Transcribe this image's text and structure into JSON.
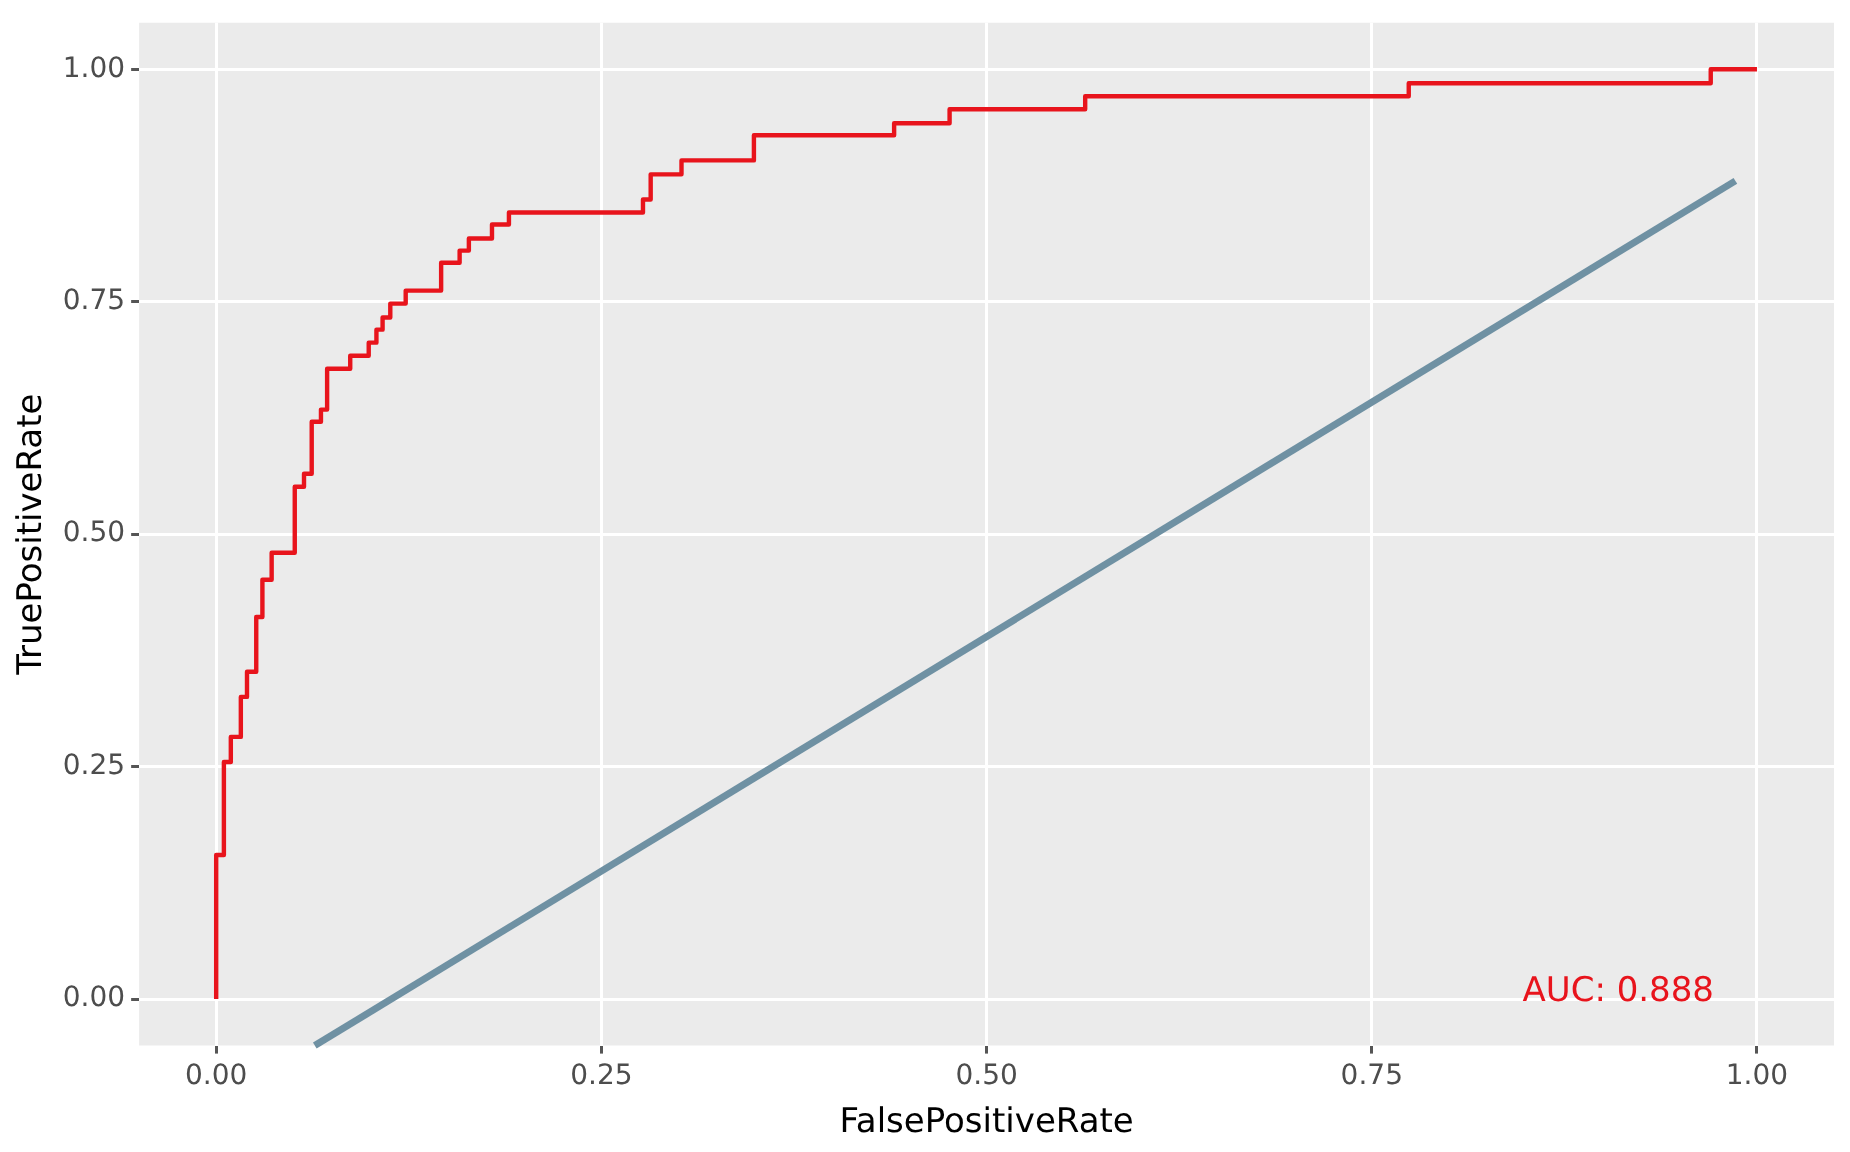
{
  "chart_data": {
    "type": "line",
    "xlabel": "FalsePositiveRate",
    "ylabel": "TruePositiveRate",
    "xlim": [
      -0.05,
      1.05
    ],
    "ylim": [
      -0.05,
      1.05
    ],
    "xticks": [
      {
        "value": 0,
        "label": "0.00"
      },
      {
        "value": 0.25,
        "label": "0.25"
      },
      {
        "value": 0.5,
        "label": "0.50"
      },
      {
        "value": 0.75,
        "label": "0.75"
      },
      {
        "value": 1,
        "label": "1.00"
      }
    ],
    "yticks": [
      {
        "value": 0,
        "label": "0.00"
      },
      {
        "value": 0.25,
        "label": "0.25"
      },
      {
        "value": 0.5,
        "label": "0.50"
      },
      {
        "value": 0.75,
        "label": "0.75"
      },
      {
        "value": 1,
        "label": "1.00"
      }
    ],
    "grid": true,
    "legend": false,
    "marker": "none",
    "line_style": "solid",
    "series": [
      {
        "type": "step",
        "color": "#e8141c",
        "x": [
          0,
          0,
          0.005,
          0.0095,
          0.016,
          0.02,
          0.026,
          0.03,
          0.036,
          0.051,
          0.057,
          0.062,
          0.068,
          0.072,
          0.087,
          0.099,
          0.104,
          0.108,
          0.113,
          0.123,
          0.146,
          0.158,
          0.164,
          0.179,
          0.19,
          0.277,
          0.282,
          0.302,
          0.349,
          0.44,
          0.476,
          0.564,
          0.774,
          0.97,
          1.0
        ],
        "values": [
          0,
          0.155,
          0.255,
          0.282,
          0.325,
          0.352,
          0.411,
          0.451,
          0.48,
          0.551,
          0.565,
          0.621,
          0.634,
          0.678,
          0.692,
          0.706,
          0.72,
          0.733,
          0.748,
          0.762,
          0.792,
          0.805,
          0.818,
          0.833,
          0.846,
          0.86,
          0.887,
          0.902,
          0.929,
          0.942,
          0.957,
          0.971,
          0.985,
          1.0,
          1.0
        ]
      },
      {
        "type": "line",
        "color": "#6f91a3",
        "x": [
          0.064,
          0.986
        ],
        "values": [
          -0.05,
          0.88
        ]
      }
    ],
    "annotations": [
      "AUC: 0.888"
    ]
  }
}
